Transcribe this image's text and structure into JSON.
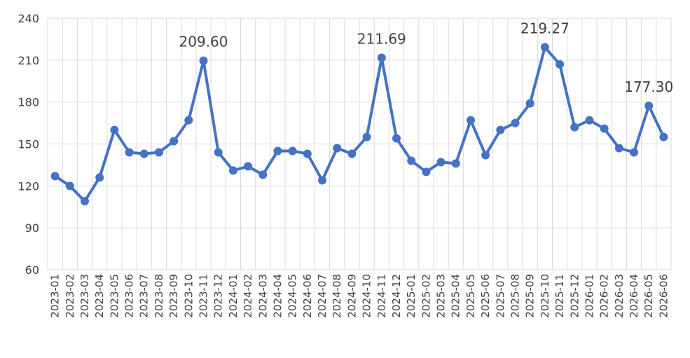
{
  "chart_data": {
    "type": "line",
    "categories": [
      "2023-01",
      "2023-02",
      "2023-03",
      "2023-04",
      "2023-05",
      "2023-06",
      "2023-07",
      "2023-08",
      "2023-09",
      "2023-10",
      "2023-11",
      "2023-12",
      "2024-01",
      "2024-02",
      "2024-03",
      "2024-04",
      "2024-05",
      "2024-06",
      "2024-07",
      "2024-08",
      "2024-09",
      "2024-10",
      "2024-11",
      "2024-12",
      "2025-01",
      "2025-02",
      "2025-03",
      "2025-04",
      "2025-05",
      "2025-06",
      "2025-07",
      "2025-08",
      "2025-09",
      "2025-10",
      "2025-11",
      "2025-12",
      "2026-01",
      "2026-02",
      "2026-03",
      "2026-04",
      "2026-05",
      "2026-06"
    ],
    "values": [
      127,
      120,
      109,
      126,
      160,
      144,
      143,
      144,
      152,
      167,
      209.6,
      144,
      131,
      134,
      128,
      145,
      145,
      143,
      124,
      147,
      143,
      155,
      211.69,
      154,
      138,
      130,
      137,
      136,
      167,
      142,
      160,
      165,
      179,
      219.27,
      207,
      162,
      167,
      161,
      147,
      144,
      177.3,
      155
    ],
    "value_labels": [
      null,
      null,
      null,
      null,
      null,
      null,
      null,
      null,
      null,
      null,
      "209.60",
      null,
      null,
      null,
      null,
      null,
      null,
      null,
      null,
      null,
      null,
      null,
      "211.69",
      null,
      null,
      null,
      null,
      null,
      null,
      null,
      null,
      null,
      null,
      "219.27",
      null,
      null,
      null,
      null,
      null,
      null,
      "177.30",
      null
    ],
    "color": "#4472c4",
    "ylim": [
      60,
      240
    ],
    "yticks": [
      60,
      90,
      120,
      150,
      180,
      210,
      240
    ],
    "grid": true
  }
}
